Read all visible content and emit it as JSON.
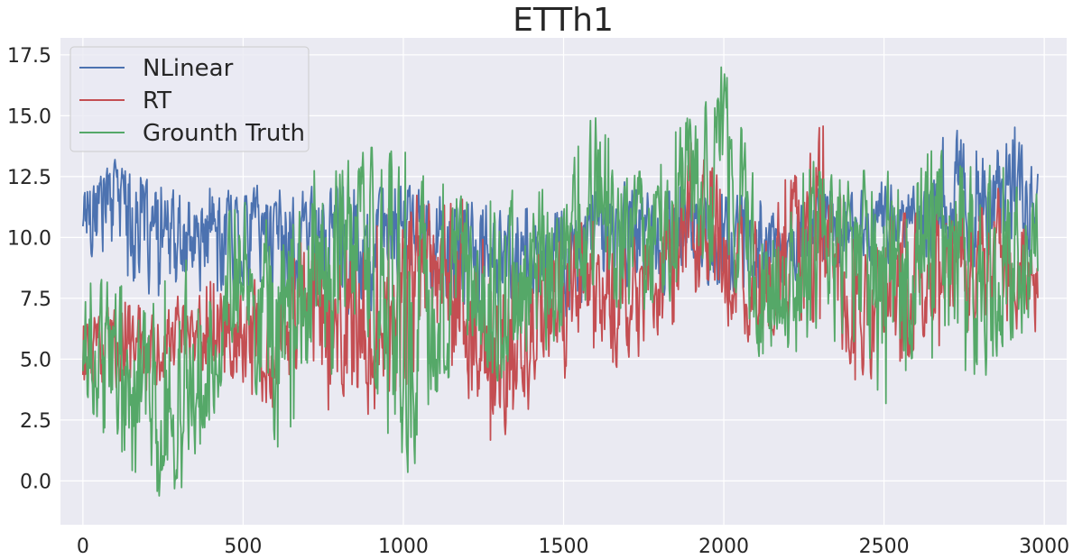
{
  "chart_data": {
    "type": "line",
    "title": "ETTh1",
    "xlabel": "",
    "ylabel": "",
    "xlim": [
      -70,
      3070
    ],
    "ylim": [
      -1.8,
      18.2
    ],
    "xticks": [
      0,
      500,
      1000,
      1500,
      2000,
      2500,
      3000
    ],
    "yticks": [
      0.0,
      2.5,
      5.0,
      7.5,
      10.0,
      12.5,
      15.0,
      17.5
    ],
    "xtick_labels": [
      "0",
      "500",
      "1000",
      "1500",
      "2000",
      "2500",
      "3000"
    ],
    "ytick_labels": [
      "0.0",
      "2.5",
      "5.0",
      "7.5",
      "10.0",
      "12.5",
      "15.0",
      "17.5"
    ],
    "grid": true,
    "legend_position": "top-left",
    "x": [
      0,
      100,
      200,
      300,
      400,
      500,
      600,
      700,
      800,
      900,
      1000,
      1100,
      1200,
      1300,
      1400,
      1500,
      1600,
      1700,
      1800,
      1900,
      2000,
      2100,
      2200,
      2300,
      2400,
      2500,
      2600,
      2700,
      2800,
      2900,
      2980
    ],
    "series": [
      {
        "name": "NLinear",
        "color": "#4C72B0",
        "values": [
          11.5,
          12.5,
          10.0,
          9.5,
          10.0,
          11.0,
          10.5,
          10.5,
          10.0,
          10.0,
          10.5,
          10.5,
          9.5,
          9.5,
          9.0,
          9.5,
          10.5,
          10.5,
          10.0,
          10.5,
          10.0,
          9.5,
          10.0,
          10.5,
          10.5,
          10.5,
          11.0,
          11.5,
          11.0,
          12.0,
          12.0
        ],
        "upper": [
          12.4,
          13.3,
          12.4,
          12.0,
          12.3,
          12.3,
          12.3,
          12.3,
          12.2,
          12.0,
          12.2,
          12.2,
          11.6,
          11.5,
          11.2,
          11.1,
          12.2,
          12.3,
          12.0,
          12.3,
          12.0,
          11.5,
          11.8,
          12.0,
          12.0,
          12.4,
          12.3,
          14.9,
          13.5,
          14.9,
          13.2
        ],
        "lower": [
          8.5,
          8.6,
          7.5,
          7.3,
          7.7,
          7.8,
          7.6,
          7.2,
          6.8,
          7.0,
          7.4,
          7.4,
          7.1,
          6.6,
          6.9,
          6.7,
          7.4,
          7.7,
          7.6,
          7.9,
          7.8,
          7.7,
          8.1,
          8.6,
          8.8,
          8.9,
          9.2,
          9.1,
          8.7,
          9.0,
          9.1
        ]
      },
      {
        "name": "RT",
        "color": "#C44E52",
        "values": [
          5.0,
          6.0,
          5.0,
          6.0,
          6.5,
          6.0,
          4.5,
          8.0,
          6.5,
          5.0,
          8.0,
          9.0,
          6.5,
          3.5,
          6.5,
          7.0,
          8.0,
          7.5,
          9.0,
          10.0,
          8.0,
          7.5,
          10.0,
          12.0,
          6.0,
          8.0,
          8.0,
          8.5,
          9.0,
          9.0,
          9.0
        ],
        "upper": [
          6.6,
          7.5,
          7.2,
          7.6,
          8.3,
          8.3,
          8.3,
          10.2,
          9.5,
          10.2,
          12.1,
          12.3,
          11.5,
          8.8,
          9.5,
          10.6,
          10.9,
          9.8,
          11.2,
          14.2,
          12.1,
          11.0,
          12.5,
          15.2,
          10.0,
          11.0,
          11.0,
          11.6,
          11.8,
          12.2,
          9.5
        ],
        "lower": [
          2.8,
          3.8,
          3.4,
          4.3,
          4.6,
          3.7,
          2.8,
          3.9,
          2.3,
          2.6,
          3.8,
          5.5,
          3.5,
          0.7,
          3.2,
          3.9,
          5.2,
          4.4,
          5.6,
          7.2,
          6.1,
          5.6,
          6.3,
          6.6,
          3.9,
          4.4,
          5.3,
          5.5,
          6.6,
          6.3,
          6.0
        ]
      },
      {
        "name": "Grounth Truth",
        "color": "#55A868",
        "values": [
          5.0,
          5.0,
          2.5,
          2.0,
          5.0,
          9.0,
          6.5,
          7.5,
          10.5,
          11.0,
          5.5,
          9.0,
          9.5,
          5.5,
          8.5,
          9.5,
          11.0,
          10.5,
          11.0,
          12.0,
          15.0,
          8.0,
          7.5,
          10.5,
          10.0,
          9.0,
          9.0,
          10.5,
          9.0,
          7.0,
          11.0
        ],
        "upper": [
          8.3,
          8.3,
          7.8,
          8.8,
          10.0,
          11.9,
          10.6,
          12.6,
          13.8,
          13.7,
          13.7,
          12.5,
          11.5,
          11.9,
          12.2,
          12.7,
          15.2,
          12.7,
          13.0,
          16.1,
          17.1,
          12.4,
          12.3,
          13.4,
          12.6,
          13.0,
          14.0,
          14.3,
          13.3,
          12.9,
          12.4
        ],
        "lower": [
          3.0,
          1.4,
          -0.5,
          -0.8,
          2.5,
          5.4,
          1.0,
          3.2,
          4.5,
          4.7,
          -0.9,
          3.6,
          5.2,
          3.1,
          4.7,
          6.2,
          8.0,
          6.7,
          7.2,
          7.8,
          9.3,
          5.2,
          4.4,
          4.6,
          5.5,
          3.0,
          5.2,
          4.6,
          4.0,
          3.6,
          7.1
        ]
      }
    ]
  }
}
